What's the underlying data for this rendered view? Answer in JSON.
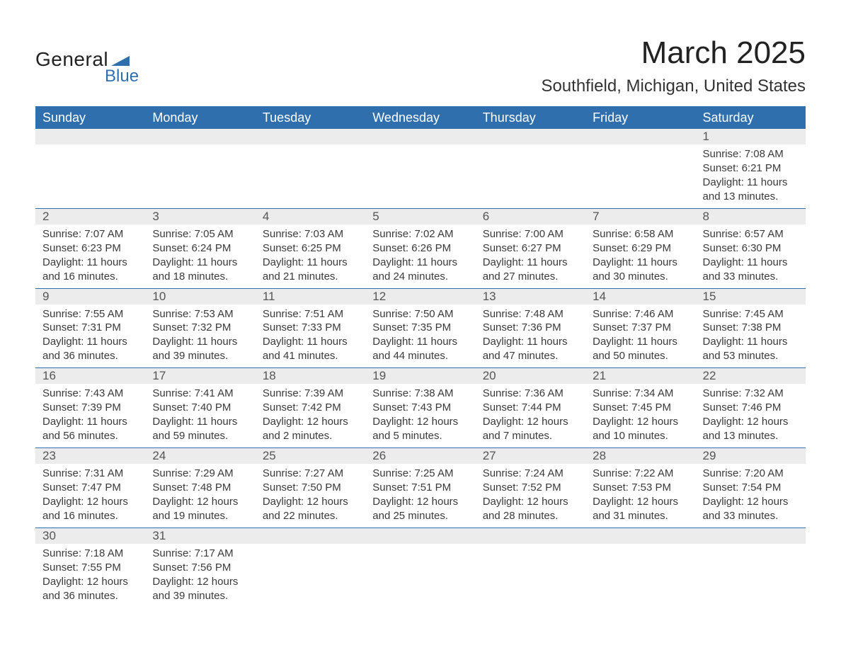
{
  "logo": {
    "text_general": "General",
    "text_blue": "Blue",
    "triangle_color": "#2f6fae"
  },
  "title": "March 2025",
  "location": "Southfield, Michigan, United States",
  "colors": {
    "header_bg": "#2f6fae",
    "header_text": "#ffffff",
    "band_bg": "#ececec",
    "row_divider": "#2f6fae",
    "body_text": "#3a3a3a"
  },
  "fonts": {
    "title_size_pt": 33,
    "location_size_pt": 18,
    "header_size_pt": 14,
    "body_size_pt": 11
  },
  "day_headers": [
    "Sunday",
    "Monday",
    "Tuesday",
    "Wednesday",
    "Thursday",
    "Friday",
    "Saturday"
  ],
  "weeks": [
    [
      {
        "n": "",
        "sunrise": "",
        "sunset": "",
        "daylight": ""
      },
      {
        "n": "",
        "sunrise": "",
        "sunset": "",
        "daylight": ""
      },
      {
        "n": "",
        "sunrise": "",
        "sunset": "",
        "daylight": ""
      },
      {
        "n": "",
        "sunrise": "",
        "sunset": "",
        "daylight": ""
      },
      {
        "n": "",
        "sunrise": "",
        "sunset": "",
        "daylight": ""
      },
      {
        "n": "",
        "sunrise": "",
        "sunset": "",
        "daylight": ""
      },
      {
        "n": "1",
        "sunrise": "Sunrise: 7:08 AM",
        "sunset": "Sunset: 6:21 PM",
        "daylight": "Daylight: 11 hours and 13 minutes."
      }
    ],
    [
      {
        "n": "2",
        "sunrise": "Sunrise: 7:07 AM",
        "sunset": "Sunset: 6:23 PM",
        "daylight": "Daylight: 11 hours and 16 minutes."
      },
      {
        "n": "3",
        "sunrise": "Sunrise: 7:05 AM",
        "sunset": "Sunset: 6:24 PM",
        "daylight": "Daylight: 11 hours and 18 minutes."
      },
      {
        "n": "4",
        "sunrise": "Sunrise: 7:03 AM",
        "sunset": "Sunset: 6:25 PM",
        "daylight": "Daylight: 11 hours and 21 minutes."
      },
      {
        "n": "5",
        "sunrise": "Sunrise: 7:02 AM",
        "sunset": "Sunset: 6:26 PM",
        "daylight": "Daylight: 11 hours and 24 minutes."
      },
      {
        "n": "6",
        "sunrise": "Sunrise: 7:00 AM",
        "sunset": "Sunset: 6:27 PM",
        "daylight": "Daylight: 11 hours and 27 minutes."
      },
      {
        "n": "7",
        "sunrise": "Sunrise: 6:58 AM",
        "sunset": "Sunset: 6:29 PM",
        "daylight": "Daylight: 11 hours and 30 minutes."
      },
      {
        "n": "8",
        "sunrise": "Sunrise: 6:57 AM",
        "sunset": "Sunset: 6:30 PM",
        "daylight": "Daylight: 11 hours and 33 minutes."
      }
    ],
    [
      {
        "n": "9",
        "sunrise": "Sunrise: 7:55 AM",
        "sunset": "Sunset: 7:31 PM",
        "daylight": "Daylight: 11 hours and 36 minutes."
      },
      {
        "n": "10",
        "sunrise": "Sunrise: 7:53 AM",
        "sunset": "Sunset: 7:32 PM",
        "daylight": "Daylight: 11 hours and 39 minutes."
      },
      {
        "n": "11",
        "sunrise": "Sunrise: 7:51 AM",
        "sunset": "Sunset: 7:33 PM",
        "daylight": "Daylight: 11 hours and 41 minutes."
      },
      {
        "n": "12",
        "sunrise": "Sunrise: 7:50 AM",
        "sunset": "Sunset: 7:35 PM",
        "daylight": "Daylight: 11 hours and 44 minutes."
      },
      {
        "n": "13",
        "sunrise": "Sunrise: 7:48 AM",
        "sunset": "Sunset: 7:36 PM",
        "daylight": "Daylight: 11 hours and 47 minutes."
      },
      {
        "n": "14",
        "sunrise": "Sunrise: 7:46 AM",
        "sunset": "Sunset: 7:37 PM",
        "daylight": "Daylight: 11 hours and 50 minutes."
      },
      {
        "n": "15",
        "sunrise": "Sunrise: 7:45 AM",
        "sunset": "Sunset: 7:38 PM",
        "daylight": "Daylight: 11 hours and 53 minutes."
      }
    ],
    [
      {
        "n": "16",
        "sunrise": "Sunrise: 7:43 AM",
        "sunset": "Sunset: 7:39 PM",
        "daylight": "Daylight: 11 hours and 56 minutes."
      },
      {
        "n": "17",
        "sunrise": "Sunrise: 7:41 AM",
        "sunset": "Sunset: 7:40 PM",
        "daylight": "Daylight: 11 hours and 59 minutes."
      },
      {
        "n": "18",
        "sunrise": "Sunrise: 7:39 AM",
        "sunset": "Sunset: 7:42 PM",
        "daylight": "Daylight: 12 hours and 2 minutes."
      },
      {
        "n": "19",
        "sunrise": "Sunrise: 7:38 AM",
        "sunset": "Sunset: 7:43 PM",
        "daylight": "Daylight: 12 hours and 5 minutes."
      },
      {
        "n": "20",
        "sunrise": "Sunrise: 7:36 AM",
        "sunset": "Sunset: 7:44 PM",
        "daylight": "Daylight: 12 hours and 7 minutes."
      },
      {
        "n": "21",
        "sunrise": "Sunrise: 7:34 AM",
        "sunset": "Sunset: 7:45 PM",
        "daylight": "Daylight: 12 hours and 10 minutes."
      },
      {
        "n": "22",
        "sunrise": "Sunrise: 7:32 AM",
        "sunset": "Sunset: 7:46 PM",
        "daylight": "Daylight: 12 hours and 13 minutes."
      }
    ],
    [
      {
        "n": "23",
        "sunrise": "Sunrise: 7:31 AM",
        "sunset": "Sunset: 7:47 PM",
        "daylight": "Daylight: 12 hours and 16 minutes."
      },
      {
        "n": "24",
        "sunrise": "Sunrise: 7:29 AM",
        "sunset": "Sunset: 7:48 PM",
        "daylight": "Daylight: 12 hours and 19 minutes."
      },
      {
        "n": "25",
        "sunrise": "Sunrise: 7:27 AM",
        "sunset": "Sunset: 7:50 PM",
        "daylight": "Daylight: 12 hours and 22 minutes."
      },
      {
        "n": "26",
        "sunrise": "Sunrise: 7:25 AM",
        "sunset": "Sunset: 7:51 PM",
        "daylight": "Daylight: 12 hours and 25 minutes."
      },
      {
        "n": "27",
        "sunrise": "Sunrise: 7:24 AM",
        "sunset": "Sunset: 7:52 PM",
        "daylight": "Daylight: 12 hours and 28 minutes."
      },
      {
        "n": "28",
        "sunrise": "Sunrise: 7:22 AM",
        "sunset": "Sunset: 7:53 PM",
        "daylight": "Daylight: 12 hours and 31 minutes."
      },
      {
        "n": "29",
        "sunrise": "Sunrise: 7:20 AM",
        "sunset": "Sunset: 7:54 PM",
        "daylight": "Daylight: 12 hours and 33 minutes."
      }
    ],
    [
      {
        "n": "30",
        "sunrise": "Sunrise: 7:18 AM",
        "sunset": "Sunset: 7:55 PM",
        "daylight": "Daylight: 12 hours and 36 minutes."
      },
      {
        "n": "31",
        "sunrise": "Sunrise: 7:17 AM",
        "sunset": "Sunset: 7:56 PM",
        "daylight": "Daylight: 12 hours and 39 minutes."
      },
      {
        "n": "",
        "sunrise": "",
        "sunset": "",
        "daylight": ""
      },
      {
        "n": "",
        "sunrise": "",
        "sunset": "",
        "daylight": ""
      },
      {
        "n": "",
        "sunrise": "",
        "sunset": "",
        "daylight": ""
      },
      {
        "n": "",
        "sunrise": "",
        "sunset": "",
        "daylight": ""
      },
      {
        "n": "",
        "sunrise": "",
        "sunset": "",
        "daylight": ""
      }
    ]
  ]
}
